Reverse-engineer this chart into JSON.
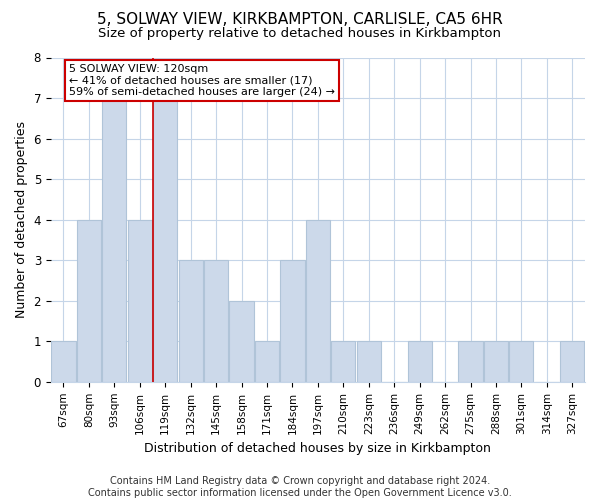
{
  "title": "5, SOLWAY VIEW, KIRKBAMPTON, CARLISLE, CA5 6HR",
  "subtitle": "Size of property relative to detached houses in Kirkbampton",
  "xlabel": "Distribution of detached houses by size in Kirkbampton",
  "ylabel": "Number of detached properties",
  "categories": [
    "67sqm",
    "80sqm",
    "93sqm",
    "106sqm",
    "119sqm",
    "132sqm",
    "145sqm",
    "158sqm",
    "171sqm",
    "184sqm",
    "197sqm",
    "210sqm",
    "223sqm",
    "236sqm",
    "249sqm",
    "262sqm",
    "275sqm",
    "288sqm",
    "301sqm",
    "314sqm",
    "327sqm"
  ],
  "values": [
    1,
    4,
    7,
    4,
    7,
    3,
    3,
    2,
    1,
    3,
    4,
    1,
    1,
    0,
    1,
    0,
    1,
    1,
    1,
    0,
    1
  ],
  "bar_color": "#ccd9ea",
  "bar_edgecolor": "#b0c4d8",
  "vline_x_index": 4,
  "vline_color": "#cc0000",
  "annotation_line1": "5 SOLWAY VIEW: 120sqm",
  "annotation_line2": "← 41% of detached houses are smaller (17)",
  "annotation_line3": "59% of semi-detached houses are larger (24) →",
  "annotation_box_color": "#ffffff",
  "annotation_box_edgecolor": "#cc0000",
  "ylim": [
    0,
    8
  ],
  "yticks": [
    0,
    1,
    2,
    3,
    4,
    5,
    6,
    7,
    8
  ],
  "footer": "Contains HM Land Registry data © Crown copyright and database right 2024.\nContains public sector information licensed under the Open Government Licence v3.0.",
  "bg_color": "#ffffff",
  "grid_color": "#c5d5e8",
  "title_fontsize": 11,
  "subtitle_fontsize": 9.5,
  "xlabel_fontsize": 9,
  "ylabel_fontsize": 9,
  "tick_fontsize": 7.5,
  "annot_fontsize": 8,
  "footer_fontsize": 7
}
